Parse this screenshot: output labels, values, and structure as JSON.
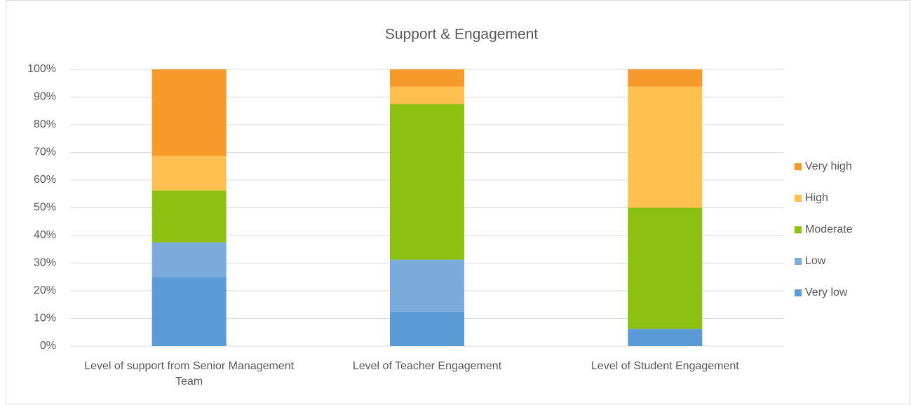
{
  "chart_data": {
    "type": "stacked_bar",
    "title": "Support & Engagement",
    "categories": [
      "Level of support from Senior Management Team",
      "Level of Teacher Engagement",
      "Level of Student Engagement"
    ],
    "series": [
      {
        "name": "Very low",
        "color": "#5b9bd5",
        "values": [
          25,
          12.5,
          6.25
        ]
      },
      {
        "name": "Low",
        "color": "#7aabdb",
        "values": [
          12.5,
          18.75,
          0
        ]
      },
      {
        "name": "Moderate",
        "color": "#8cc011",
        "values": [
          18.75,
          56.25,
          43.75
        ]
      },
      {
        "name": "High",
        "color": "#ffc04f",
        "values": [
          12.5,
          6.25,
          43.75
        ]
      },
      {
        "name": "Very high",
        "color": "#f79a2a",
        "values": [
          31.25,
          6.25,
          6.25
        ]
      }
    ],
    "ylim": [
      0,
      100
    ],
    "yticks": [
      {
        "value": 0,
        "label": "0%"
      },
      {
        "value": 10,
        "label": "10%"
      },
      {
        "value": 20,
        "label": "20%"
      },
      {
        "value": 30,
        "label": "30%"
      },
      {
        "value": 40,
        "label": "40%"
      },
      {
        "value": 50,
        "label": "50%"
      },
      {
        "value": 60,
        "label": "60%"
      },
      {
        "value": 70,
        "label": "70%"
      },
      {
        "value": 80,
        "label": "80%"
      },
      {
        "value": 90,
        "label": "90%"
      },
      {
        "value": 100,
        "label": "100%"
      }
    ],
    "grid": true,
    "legend": "right"
  }
}
